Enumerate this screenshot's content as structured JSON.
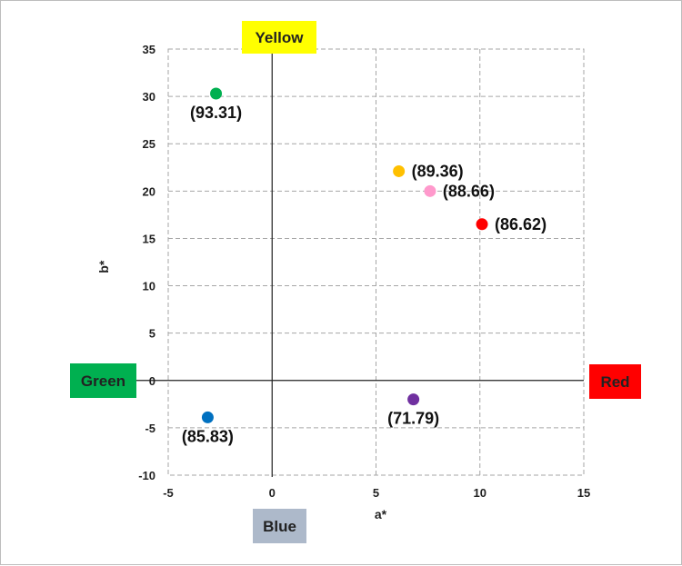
{
  "chart_data": {
    "type": "scatter",
    "xlabel": "a*",
    "ylabel": "b*",
    "xlim": [
      -5,
      15
    ],
    "ylim": [
      -10,
      35
    ],
    "x_ticks": [
      -5,
      0,
      5,
      10,
      15
    ],
    "y_ticks": [
      -10,
      -5,
      0,
      5,
      10,
      15,
      20,
      25,
      30,
      35
    ],
    "grid": true,
    "points": [
      {
        "x": -2.7,
        "y": 30.3,
        "label": "(93.31)",
        "color": "#00b050",
        "label_pos": "below"
      },
      {
        "x": 6.1,
        "y": 22.1,
        "label": "(89.36)",
        "color": "#ffc000",
        "label_pos": "right"
      },
      {
        "x": 7.6,
        "y": 20.0,
        "label": "(88.66)",
        "color": "#ff99cc",
        "label_pos": "right"
      },
      {
        "x": 10.1,
        "y": 16.5,
        "label": "(86.62)",
        "color": "#ff0000",
        "label_pos": "right"
      },
      {
        "x": 6.8,
        "y": -2.0,
        "label": "(71.79)",
        "color": "#7030a0",
        "label_pos": "below"
      },
      {
        "x": -3.1,
        "y": -3.9,
        "label": "(85.83)",
        "color": "#0070c0",
        "label_pos": "below"
      }
    ],
    "direction_labels": [
      {
        "text": "Yellow",
        "position": "top",
        "bg": "#ffff00",
        "fg": "#222222"
      },
      {
        "text": "Red",
        "position": "right",
        "bg": "#ff0000",
        "fg": "#222222"
      },
      {
        "text": "Green",
        "position": "left",
        "bg": "#00b050",
        "fg": "#222222"
      },
      {
        "text": "Blue",
        "position": "bottom",
        "bg": "#adb9ca",
        "fg": "#222222"
      }
    ]
  }
}
